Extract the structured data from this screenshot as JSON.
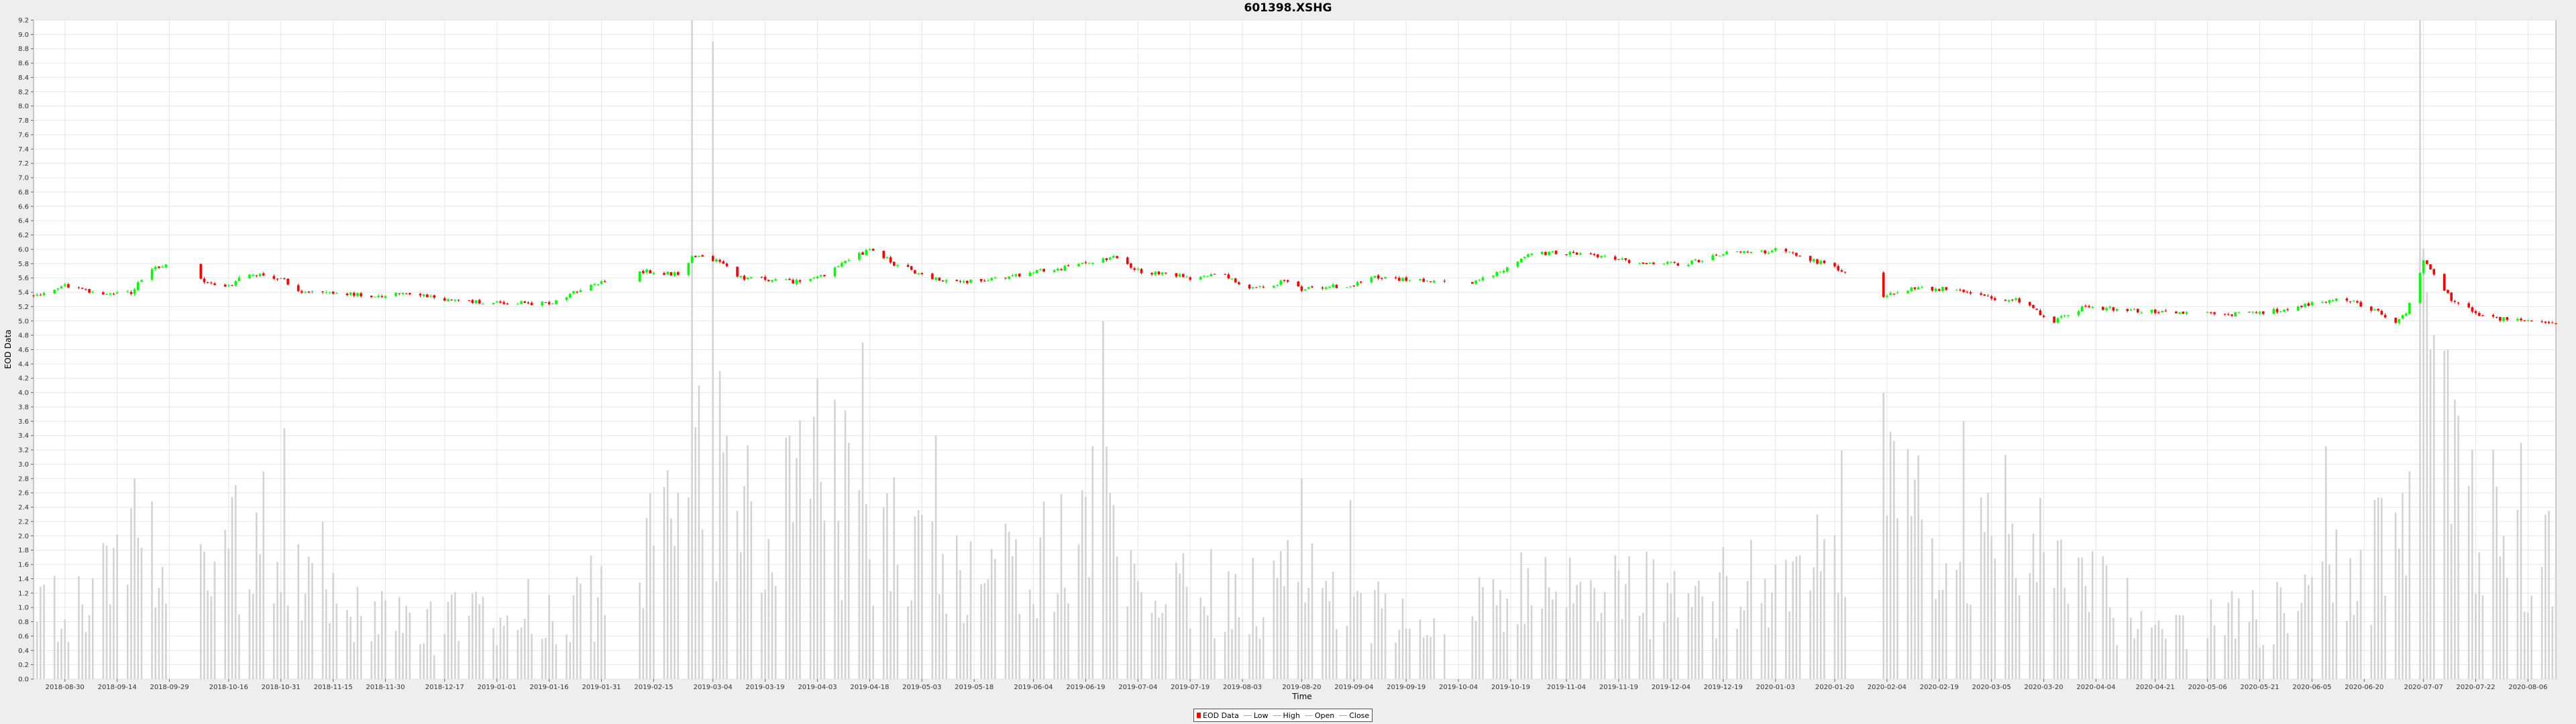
{
  "chart_data": {
    "type": "candlestick-volume",
    "title": "601398.XSHG",
    "xlabel": "Time",
    "ylabel": "EOD Data",
    "ylim": [
      0.0,
      9.2
    ],
    "ytick_step": 0.2,
    "xlim": [
      "2018-08-21",
      "2020-08-14"
    ],
    "x_ticks": [
      "2018-08-30",
      "2018-09-14",
      "2018-09-29",
      "2018-10-16",
      "2018-10-31",
      "2018-11-15",
      "2018-11-30",
      "2018-12-17",
      "2019-01-01",
      "2019-01-16",
      "2019-01-31",
      "2019-02-15",
      "2019-03-04",
      "2019-03-19",
      "2019-04-03",
      "2019-04-18",
      "2019-05-03",
      "2019-05-18",
      "2019-06-04",
      "2019-06-19",
      "2019-07-04",
      "2019-07-19",
      "2019-08-03",
      "2019-08-20",
      "2019-09-04",
      "2019-09-19",
      "2019-10-04",
      "2019-10-19",
      "2019-11-04",
      "2019-11-19",
      "2019-12-04",
      "2019-12-19",
      "2020-01-03",
      "2020-01-20",
      "2020-02-04",
      "2020-02-19",
      "2020-03-05",
      "2020-03-20",
      "2020-04-04",
      "2020-04-21",
      "2020-05-06",
      "2020-05-21",
      "2020-06-05",
      "2020-06-20",
      "2020-07-07",
      "2020-07-22",
      "2020-08-06"
    ],
    "grid": true,
    "legend": [
      "EOD Data",
      "Low",
      "High",
      "Open",
      "Close"
    ],
    "legend_position": "bottom-center",
    "colors": {
      "up": "#00ff00",
      "down": "#ff0000",
      "volume": "#d3d3d3",
      "grid": "#e6e6e6",
      "plot_bg": "#ffffff"
    },
    "price_anchors": [
      [
        "2018-08-21",
        5.35
      ],
      [
        "2018-08-30",
        5.5
      ],
      [
        "2018-09-10",
        5.35
      ],
      [
        "2018-09-18",
        5.4
      ],
      [
        "2018-09-24",
        5.75
      ],
      [
        "2018-09-28",
        5.78
      ],
      [
        "2018-10-09",
        5.55
      ],
      [
        "2018-10-16",
        5.5
      ],
      [
        "2018-10-22",
        5.65
      ],
      [
        "2018-10-31",
        5.6
      ],
      [
        "2018-11-05",
        5.4
      ],
      [
        "2018-11-30",
        5.35
      ],
      [
        "2018-12-05",
        5.4
      ],
      [
        "2018-12-17",
        5.3
      ],
      [
        "2018-12-28",
        5.25
      ],
      [
        "2019-01-16",
        5.25
      ],
      [
        "2019-01-31",
        5.55
      ],
      [
        "2019-02-11",
        5.7
      ],
      [
        "2019-02-22",
        5.65
      ],
      [
        "2019-02-26",
        5.9
      ],
      [
        "2019-03-06",
        5.85
      ],
      [
        "2019-03-12",
        5.6
      ],
      [
        "2019-03-28",
        5.55
      ],
      [
        "2019-04-03",
        5.6
      ],
      [
        "2019-04-18",
        6.0
      ],
      [
        "2019-04-25",
        5.8
      ],
      [
        "2019-05-06",
        5.6
      ],
      [
        "2019-05-15",
        5.55
      ],
      [
        "2019-05-31",
        5.65
      ],
      [
        "2019-06-14",
        5.75
      ],
      [
        "2019-06-28",
        5.9
      ],
      [
        "2019-07-04",
        5.7
      ],
      [
        "2019-07-19",
        5.6
      ],
      [
        "2019-07-28",
        5.65
      ],
      [
        "2019-08-06",
        5.45
      ],
      [
        "2019-08-15",
        5.55
      ],
      [
        "2019-08-20",
        5.45
      ],
      [
        "2019-09-04",
        5.5
      ],
      [
        "2019-09-10",
        5.6
      ],
      [
        "2019-09-25",
        5.55
      ],
      [
        "2019-10-09",
        5.55
      ],
      [
        "2019-10-18",
        5.75
      ],
      [
        "2019-10-24",
        5.95
      ],
      [
        "2019-11-06",
        5.95
      ],
      [
        "2019-11-19",
        5.85
      ],
      [
        "2019-11-26",
        5.8
      ],
      [
        "2019-12-09",
        5.8
      ],
      [
        "2019-12-19",
        5.95
      ],
      [
        "2019-12-30",
        5.95
      ],
      [
        "2020-01-03",
        6.0
      ],
      [
        "2020-01-20",
        5.75
      ],
      [
        "2020-02-03",
        5.35
      ],
      [
        "2020-02-10",
        5.45
      ],
      [
        "2020-02-25",
        5.45
      ],
      [
        "2020-03-05",
        5.3
      ],
      [
        "2020-03-12",
        5.3
      ],
      [
        "2020-03-23",
        5.0
      ],
      [
        "2020-04-01",
        5.2
      ],
      [
        "2020-04-14",
        5.15
      ],
      [
        "2020-04-29",
        5.1
      ],
      [
        "2020-05-21",
        5.1
      ],
      [
        "2020-06-05",
        5.25
      ],
      [
        "2020-06-15",
        5.3
      ],
      [
        "2020-06-23",
        5.15
      ],
      [
        "2020-06-29",
        5.0
      ],
      [
        "2020-07-02",
        5.1
      ],
      [
        "2020-07-06",
        5.7
      ],
      [
        "2020-07-07",
        5.85
      ],
      [
        "2020-07-15",
        5.3
      ],
      [
        "2020-07-24",
        5.05
      ],
      [
        "2020-08-14",
        4.97
      ]
    ],
    "volume_anchors": [
      [
        "2018-08-21",
        0.9
      ],
      [
        "2018-09-05",
        1.0
      ],
      [
        "2018-09-20",
        1.8
      ],
      [
        "2018-10-20",
        1.8
      ],
      [
        "2018-11-15",
        1.0
      ],
      [
        "2018-12-10",
        0.7
      ],
      [
        "2019-01-10",
        1.0
      ],
      [
        "2019-02-10",
        1.2
      ],
      [
        "2019-02-25",
        3.5
      ],
      [
        "2019-03-05",
        3.0
      ],
      [
        "2019-03-20",
        2.0
      ],
      [
        "2019-04-05",
        2.6
      ],
      [
        "2019-04-20",
        2.0
      ],
      [
        "2019-05-10",
        1.3
      ],
      [
        "2019-06-05",
        1.5
      ],
      [
        "2019-06-20",
        2.6
      ],
      [
        "2019-07-10",
        1.1
      ],
      [
        "2019-08-20",
        1.3
      ],
      [
        "2019-09-20",
        0.9
      ],
      [
        "2019-10-20",
        1.2
      ],
      [
        "2019-12-20",
        1.2
      ],
      [
        "2020-01-10",
        1.5
      ],
      [
        "2020-02-04",
        2.7
      ],
      [
        "2020-02-20",
        1.6
      ],
      [
        "2020-03-10",
        2.1
      ],
      [
        "2020-03-25",
        1.4
      ],
      [
        "2020-04-20",
        0.8
      ],
      [
        "2020-05-20",
        0.9
      ],
      [
        "2020-06-10",
        1.3
      ],
      [
        "2020-06-30",
        1.8
      ],
      [
        "2020-07-07",
        4.2
      ],
      [
        "2020-07-15",
        3.2
      ],
      [
        "2020-07-25",
        2.0
      ],
      [
        "2020-08-14",
        1.7
      ]
    ],
    "volume_spikes": [
      [
        "2018-09-19",
        2.8
      ],
      [
        "2018-10-21",
        2.38
      ],
      [
        "2018-10-26",
        2.9
      ],
      [
        "2018-11-01",
        3.5
      ],
      [
        "2018-11-12",
        2.2
      ],
      [
        "2019-01-19",
        2.15
      ],
      [
        "2019-02-22",
        2.6
      ],
      [
        "2019-02-26",
        9.2
      ],
      [
        "2019-02-28",
        4.1
      ],
      [
        "2019-03-04",
        8.9
      ],
      [
        "2019-03-06",
        4.3
      ],
      [
        "2019-03-08",
        3.4
      ],
      [
        "2019-04-03",
        4.2
      ],
      [
        "2019-04-08",
        3.9
      ],
      [
        "2019-04-16",
        4.7
      ],
      [
        "2019-04-11",
        3.75
      ],
      [
        "2019-04-22",
        2.4
      ],
      [
        "2019-05-07",
        3.4
      ],
      [
        "2019-06-24",
        5.0
      ],
      [
        "2019-06-21",
        3.25
      ],
      [
        "2019-06-26",
        2.6
      ],
      [
        "2019-08-20",
        2.8
      ],
      [
        "2019-09-03",
        2.5
      ],
      [
        "2020-01-15",
        2.3
      ],
      [
        "2020-02-03",
        4.0
      ],
      [
        "2020-02-05",
        3.45
      ],
      [
        "2020-02-26",
        3.6
      ],
      [
        "2020-03-04",
        2.6
      ],
      [
        "2020-06-09",
        3.25
      ],
      [
        "2020-06-23",
        2.5
      ],
      [
        "2020-07-01",
        2.6
      ],
      [
        "2020-07-03",
        2.9
      ],
      [
        "2020-07-06",
        9.2
      ],
      [
        "2020-07-08",
        5.4
      ],
      [
        "2020-07-10",
        4.8
      ],
      [
        "2020-07-14",
        4.6
      ],
      [
        "2020-07-16",
        3.9
      ],
      [
        "2020-07-21",
        3.2
      ],
      [
        "2020-07-27",
        3.2
      ],
      [
        "2020-08-04",
        3.3
      ],
      [
        "2020-08-12",
        2.35
      ]
    ],
    "gaps": [
      [
        "2018-09-30",
        "2018-10-07"
      ],
      [
        "2019-02-04",
        "2019-02-10"
      ],
      [
        "2019-10-01",
        "2019-10-07"
      ],
      [
        "2020-01-24",
        "2020-02-02"
      ],
      [
        "2020-05-01",
        "2020-05-05"
      ]
    ]
  }
}
